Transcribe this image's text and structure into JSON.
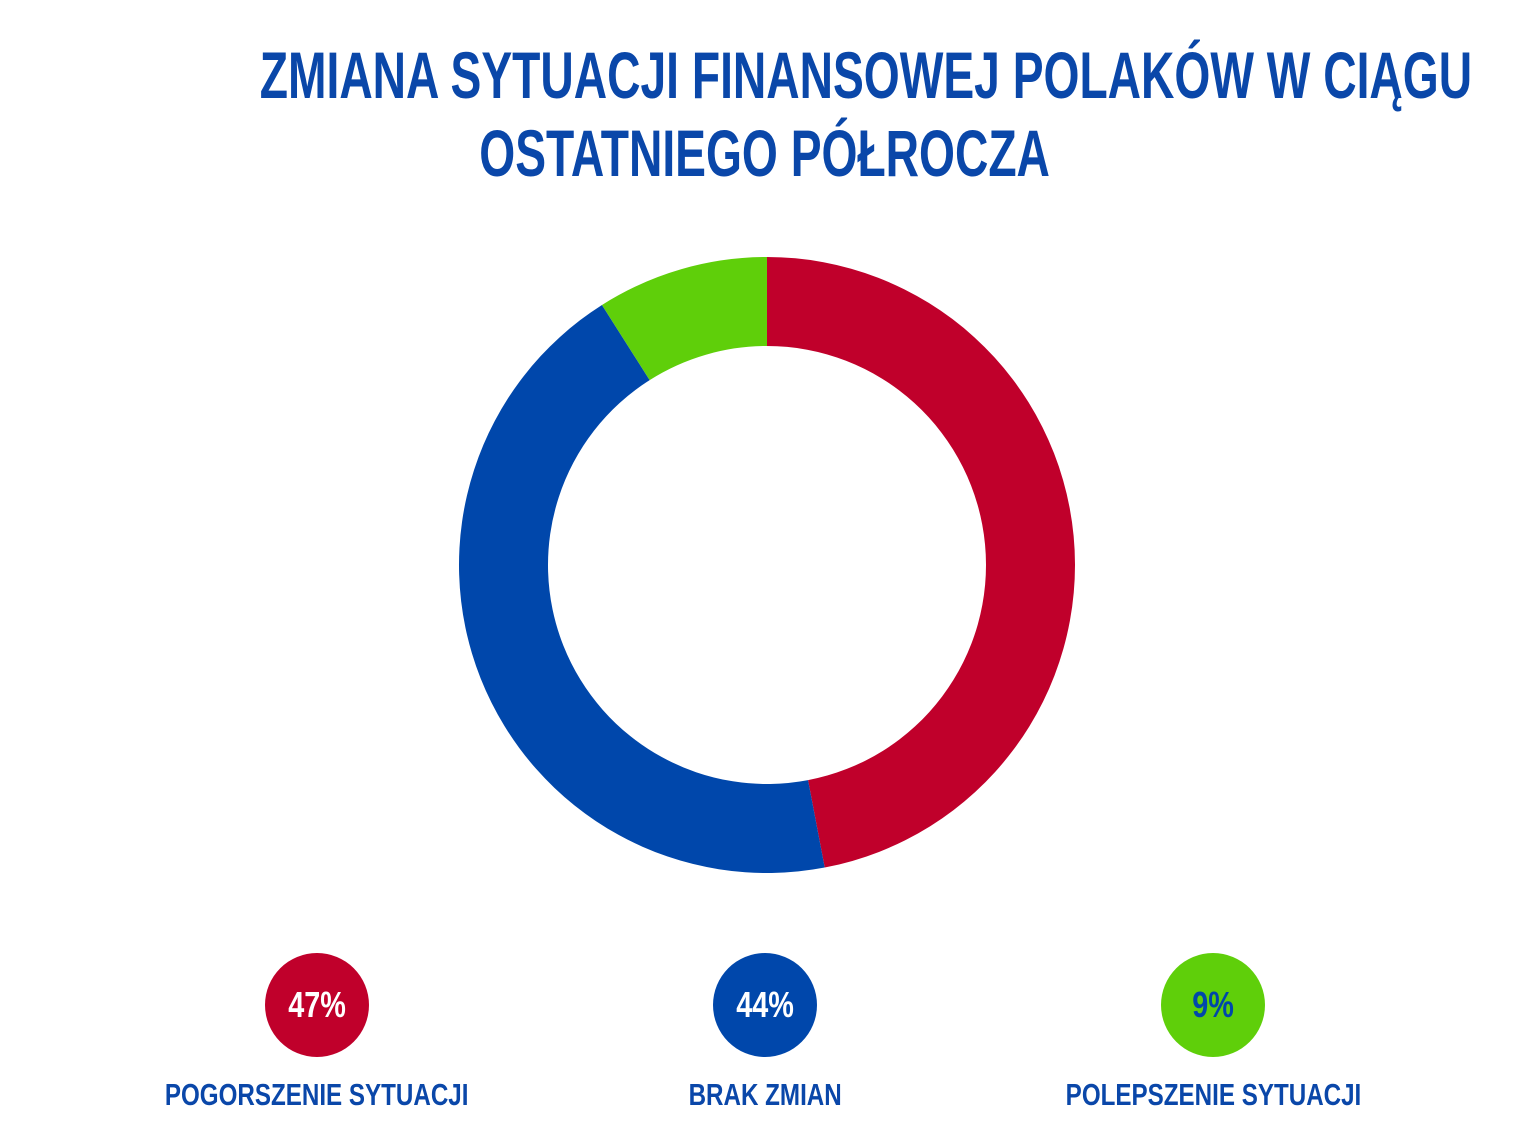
{
  "chart_data": {
    "type": "pie",
    "variant": "donut",
    "title": "ZMIANA SYTUACJI FINANSOWEJ POLAKÓW W CIĄGU OSTATNIEGO PÓŁROCZA",
    "title_lines": [
      "ZMIANA SYTUACJI FINANSOWEJ POLAKÓW W CIĄGU",
      "OSTATNIEGO PÓŁROCZA"
    ],
    "unit": "%",
    "legend_placement": "bottom",
    "slices": [
      {
        "label": "POGORSZENIE SYTUACJI",
        "value": 47,
        "value_label": "47%",
        "color": "#c0002b",
        "text_color": "#ffffff"
      },
      {
        "label": "BRAK ZMIAN",
        "value": 44,
        "value_label": "44%",
        "color": "#0047ab",
        "text_color": "#ffffff"
      },
      {
        "label": "POLEPSZENIE SYTUACJI",
        "value": 9,
        "value_label": "9%",
        "color": "#5fcf0a",
        "text_color": "#0047ab"
      }
    ]
  }
}
